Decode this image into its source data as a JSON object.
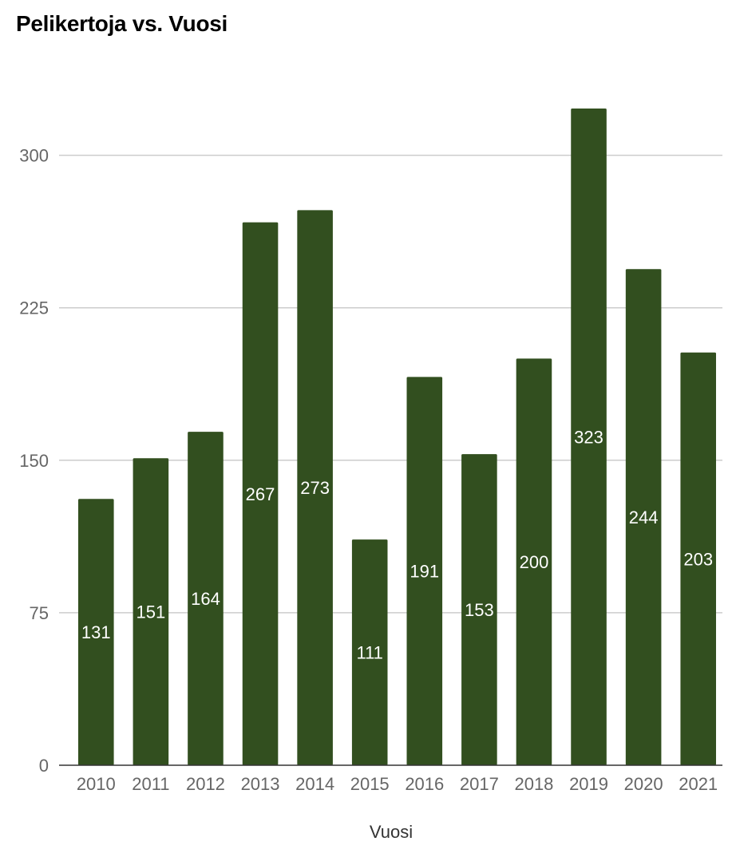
{
  "chart_data": {
    "type": "bar",
    "title": "Pelikertoja vs. Vuosi",
    "xlabel": "Vuosi",
    "ylabel": "",
    "categories": [
      "2010",
      "2011",
      "2012",
      "2013",
      "2014",
      "2015",
      "2016",
      "2017",
      "2018",
      "2019",
      "2020",
      "2021"
    ],
    "values": [
      131,
      151,
      164,
      267,
      273,
      111,
      191,
      153,
      200,
      323,
      244,
      203
    ],
    "ylim": [
      0,
      323
    ],
    "yticks": [
      0,
      75,
      150,
      225,
      300
    ],
    "grid": true,
    "legend": "none",
    "bar_color": "#324f1f",
    "data_labels": true
  }
}
